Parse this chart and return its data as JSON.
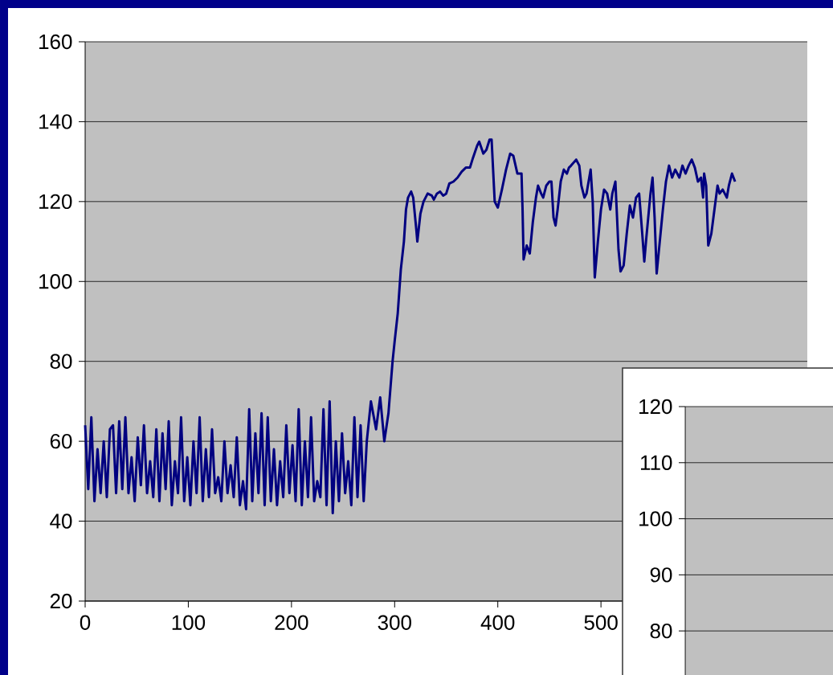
{
  "chart_data": [
    {
      "type": "line",
      "xlim": [
        0,
        700
      ],
      "ylim": [
        20,
        160
      ],
      "xticks": [
        0,
        100,
        200,
        300,
        400,
        500
      ],
      "yticks": [
        20,
        40,
        60,
        80,
        100,
        120,
        140,
        160
      ],
      "grid": "y",
      "line_style": "solid",
      "marker": "none",
      "series": [
        {
          "color": "#000080",
          "x": [
            0,
            3,
            6,
            9,
            12,
            15,
            18,
            21,
            24,
            27,
            30,
            33,
            36,
            39,
            42,
            45,
            48,
            51,
            54,
            57,
            60,
            63,
            66,
            69,
            72,
            75,
            78,
            81,
            84,
            87,
            90,
            93,
            96,
            99,
            102,
            105,
            108,
            111,
            114,
            117,
            120,
            123,
            126,
            129,
            132,
            135,
            138,
            141,
            144,
            147,
            150,
            153,
            156,
            159,
            162,
            165,
            168,
            171,
            174,
            177,
            180,
            183,
            186,
            189,
            192,
            195,
            198,
            201,
            204,
            207,
            210,
            213,
            216,
            219,
            222,
            225,
            228,
            231,
            234,
            237,
            240,
            243,
            246,
            249,
            252,
            255,
            258,
            261,
            264,
            267,
            270,
            273,
            277,
            282,
            286,
            290,
            294,
            298,
            300,
            303,
            306,
            309,
            311,
            313,
            316,
            318,
            321,
            322,
            325,
            328,
            332,
            336,
            338,
            341,
            344,
            347,
            350,
            353,
            357,
            361,
            365,
            369,
            373,
            376,
            380,
            382,
            386,
            389,
            392,
            394,
            397,
            400,
            404,
            408,
            412,
            415,
            419,
            423,
            424,
            425,
            428,
            431,
            434,
            437,
            439,
            442,
            444,
            447,
            450,
            452,
            454,
            456,
            458,
            461,
            464,
            467,
            469,
            471,
            476,
            479,
            481,
            484,
            486,
            490,
            492,
            494,
            497,
            500,
            503,
            506,
            509,
            511,
            514,
            517,
            519,
            522,
            525,
            528,
            531,
            534,
            537,
            540,
            542,
            544,
            548,
            550,
            552,
            554,
            557,
            560,
            563,
            566,
            569,
            572,
            576,
            579,
            582,
            585,
            588,
            591,
            594,
            597,
            599,
            600,
            602,
            604,
            607,
            610,
            613,
            615,
            618,
            622,
            624,
            627,
            630
          ],
          "values": [
            64,
            48,
            66,
            45,
            58,
            47,
            60,
            46,
            63,
            64,
            47,
            65,
            48,
            66,
            47,
            56,
            45,
            61,
            49,
            64,
            47,
            55,
            46,
            63,
            45,
            62,
            48,
            65,
            44,
            55,
            47,
            66,
            45,
            56,
            44,
            60,
            47,
            66,
            45,
            58,
            46,
            63,
            47,
            51,
            45,
            60,
            47,
            54,
            46,
            61,
            44,
            50,
            43,
            68,
            45,
            62,
            47,
            67,
            44,
            66,
            45,
            58,
            44,
            55,
            46,
            64,
            47,
            59,
            45,
            68,
            44,
            60,
            46,
            66,
            45,
            50,
            46,
            68,
            44,
            70,
            42,
            60,
            45,
            62,
            47,
            55,
            44,
            66,
            46,
            64,
            45,
            60,
            70,
            63,
            71,
            60,
            67,
            80,
            85,
            92,
            103,
            110,
            118,
            121,
            122.5,
            121,
            113,
            110,
            117,
            120,
            122,
            121.5,
            120.5,
            122,
            122.5,
            121.5,
            122,
            124.5,
            125,
            126,
            127.5,
            128.5,
            128.5,
            131,
            134,
            135,
            132,
            133,
            135.5,
            135.5,
            120,
            118.5,
            123,
            128,
            132,
            131.5,
            127,
            127,
            118,
            105.5,
            109,
            107,
            115,
            121,
            124,
            122,
            121,
            124,
            125,
            125,
            116,
            114,
            118,
            125,
            128,
            127,
            128.5,
            129,
            130.5,
            129,
            124,
            121,
            122,
            128,
            120,
            101,
            110,
            118,
            123,
            122,
            118,
            122,
            125,
            108,
            102.5,
            104,
            112,
            119,
            116,
            121,
            122,
            112,
            105,
            111,
            122,
            126,
            116,
            102,
            110,
            118,
            125,
            129,
            126,
            128,
            126,
            129,
            127,
            129,
            130.5,
            128.5,
            125,
            126,
            121,
            127,
            124,
            109,
            112,
            118,
            124,
            122,
            123,
            121,
            124,
            127,
            125
          ]
        }
      ]
    },
    {
      "type": "line",
      "categories": [
        null,
        null
      ],
      "values": [
        null,
        null
      ],
      "ylim": [
        72,
        120
      ],
      "yticks": [
        80,
        90,
        100,
        110,
        120
      ],
      "grid": "y",
      "tick_labels": "y"
    }
  ]
}
